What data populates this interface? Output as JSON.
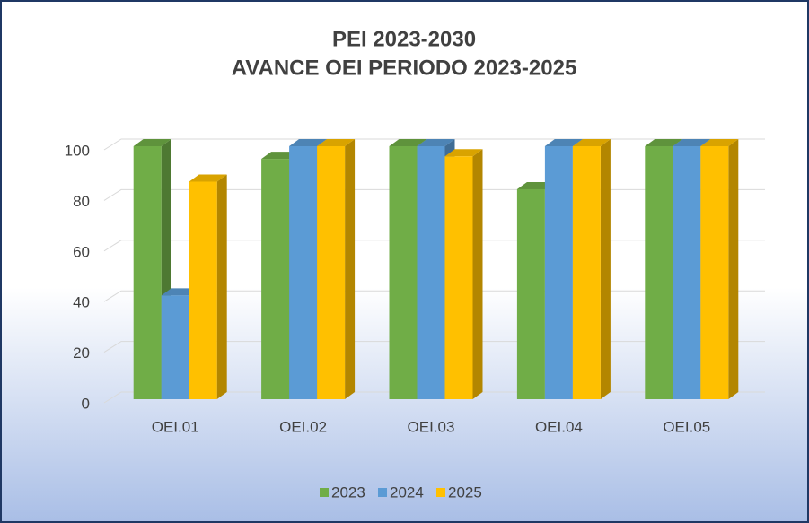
{
  "chart_data": {
    "type": "bar3d",
    "title": "PEI 2023-2030",
    "subtitle": "AVANCE OEI PERIODO 2023-2025",
    "categories": [
      "OEI.01",
      "OEI.02",
      "OEI.03",
      "OEI.04",
      "OEI.05"
    ],
    "series": [
      {
        "name": "2023",
        "color": "#70ad47",
        "values": [
          100,
          95,
          100,
          83,
          100
        ]
      },
      {
        "name": "2024",
        "color": "#5b9bd5",
        "values": [
          41,
          100,
          100,
          100,
          100
        ]
      },
      {
        "name": "2025",
        "color": "#ffc000",
        "values": [
          86,
          100,
          96,
          100,
          100
        ]
      }
    ],
    "ylim": [
      0,
      100
    ],
    "yticks": [
      0,
      20,
      40,
      60,
      80,
      100
    ],
    "grid": true,
    "legend": "bottom"
  }
}
